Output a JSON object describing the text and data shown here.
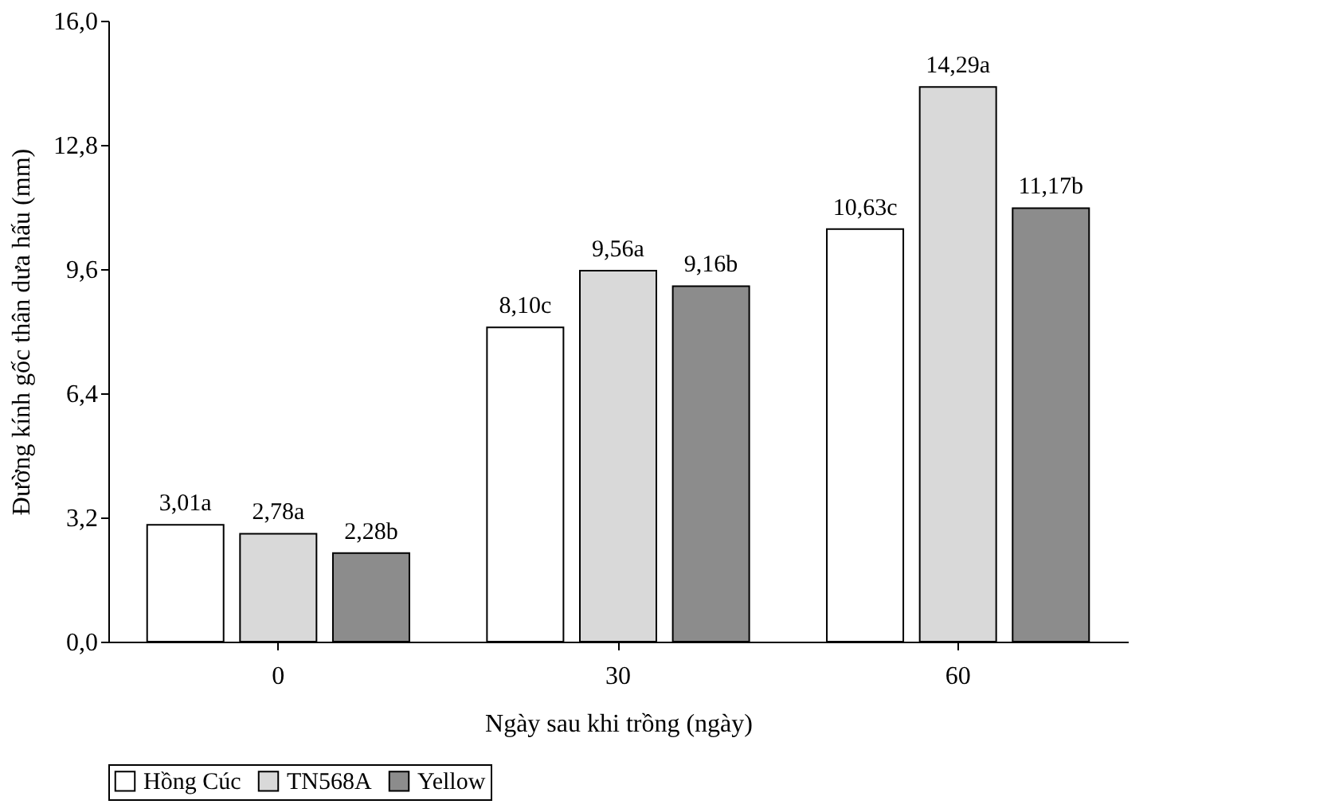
{
  "chart_data": {
    "type": "bar",
    "xlabel": "Ngày sau khi trồng (ngày)",
    "ylabel": "Đường kính gốc thân dưa hấu (mm)",
    "categories": [
      "0",
      "30",
      "60"
    ],
    "series": [
      {
        "name": "Hồng Cúc",
        "color": "#ffffff",
        "values": [
          3.01,
          8.1,
          10.63
        ],
        "value_labels": [
          "3,01a",
          "8,10c",
          "10,63c"
        ]
      },
      {
        "name": "TN568A",
        "color": "#d9d9d9",
        "values": [
          2.78,
          9.56,
          14.29
        ],
        "value_labels": [
          "2,78a",
          "9,56a",
          "14,29a"
        ]
      },
      {
        "name": "Yellow",
        "color": "#8c8c8c",
        "values": [
          2.28,
          9.16,
          11.17
        ],
        "value_labels": [
          "2,28b",
          "9,16b",
          "11,17b"
        ]
      }
    ],
    "ylim": [
      0,
      16
    ],
    "yticks": [
      {
        "value": 0,
        "label": "0,0"
      },
      {
        "value": 3.2,
        "label": "3,2"
      },
      {
        "value": 6.4,
        "label": "6,4"
      },
      {
        "value": 9.6,
        "label": "9,6"
      },
      {
        "value": 12.8,
        "label": "12,8"
      },
      {
        "value": 16,
        "label": "16,0"
      }
    ],
    "grid": false,
    "legend": "bottom"
  }
}
